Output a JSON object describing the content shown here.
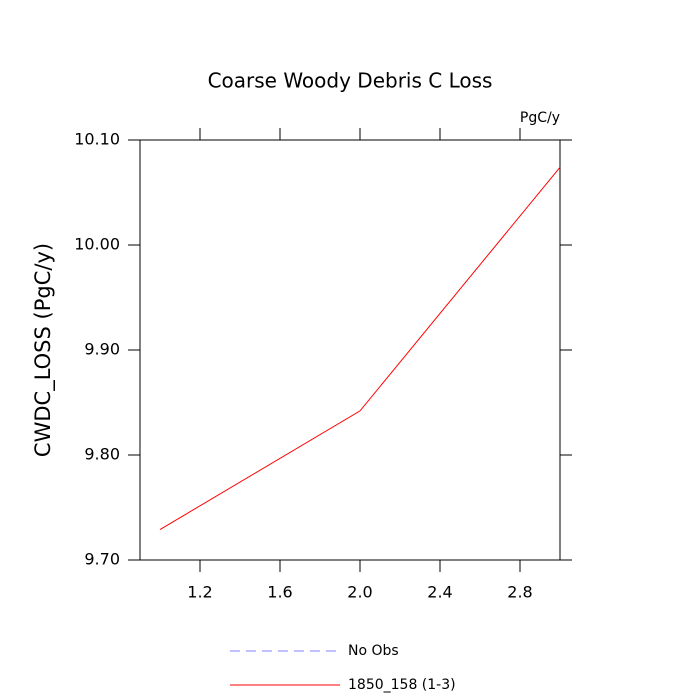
{
  "chart_data": {
    "type": "line",
    "title": "Coarse Woody Debris C Loss",
    "units": "PgC/y",
    "y_label": "CWDC_LOSS  (PgC/y)",
    "x": [
      1,
      2,
      3
    ],
    "series": [
      {
        "name": "No Obs",
        "color": "#8080ff",
        "dashed": true,
        "values": [
          null,
          null,
          null
        ]
      },
      {
        "name": "1850_158 (1-3)",
        "color": "#ff0000",
        "dashed": false,
        "values": [
          9.729,
          9.842,
          10.074
        ]
      }
    ],
    "xlim": [
      0.9,
      3.0
    ],
    "xticks": [
      1.2,
      1.6,
      {
        "value": 2,
        "label": "2.0"
      },
      2.4,
      2.8
    ],
    "ylim": [
      9.7,
      10.1
    ],
    "yticks": [
      {
        "value": 9.7,
        "label": "9.70"
      },
      {
        "value": 9.8,
        "label": "9.80"
      },
      {
        "value": 9.9,
        "label": "9.90"
      },
      {
        "value": 10,
        "label": "10.00"
      },
      {
        "value": 10.1,
        "label": "10.10"
      }
    ]
  }
}
